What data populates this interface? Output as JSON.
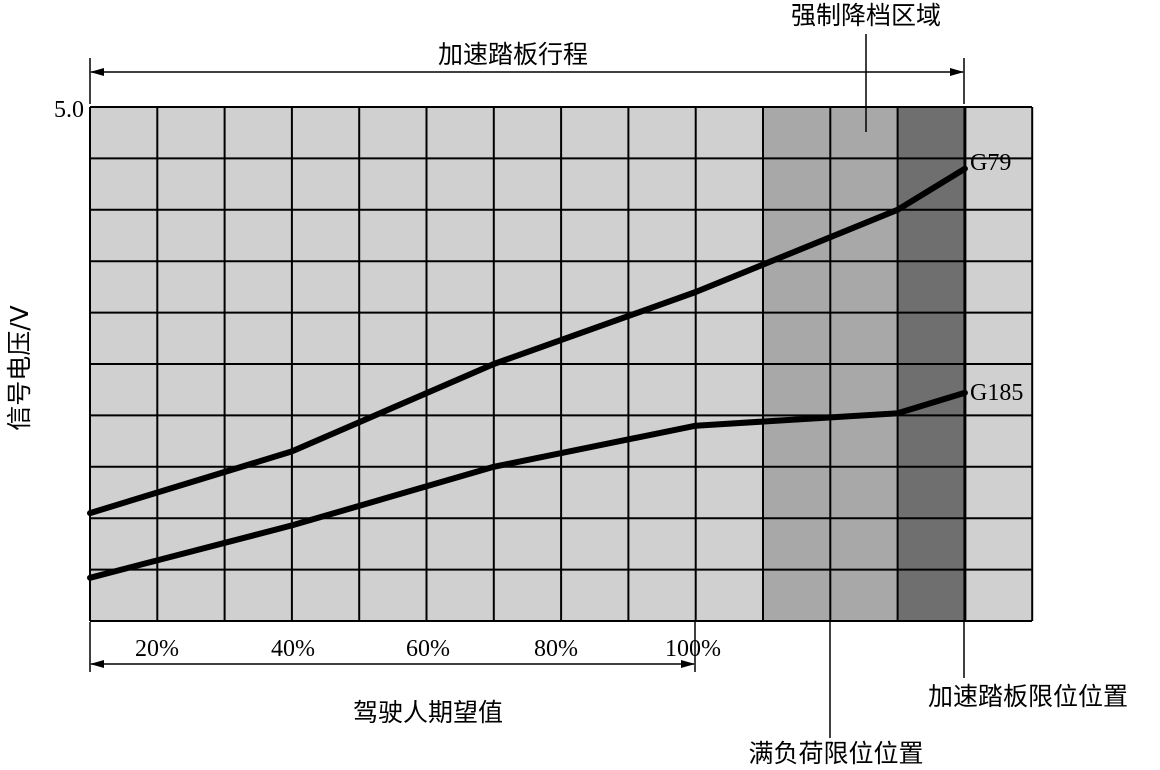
{
  "colors": {
    "background": "#ffffff",
    "zone_normal": "#d0d0d0",
    "zone_full_load": "#a8a8a8",
    "zone_kickdown": "#6f6f6f",
    "grid": "#000000",
    "curve": "#000000"
  },
  "labels": {
    "pedal_travel": "加速踏板行程",
    "kickdown_zone": "强制降档区域",
    "y_max": "5.0",
    "y_axis": "信号电压/V",
    "driver_demand": "驾驶人期望值",
    "pedal_stop": "加速踏板限位位置",
    "full_load_stop": "满负荷限位位置"
  },
  "chart_data": {
    "type": "line",
    "ylabel": "信号电压/V",
    "xlabel": "驾驶人期望值",
    "ylim": [
      0,
      5.0
    ],
    "xlim": [
      0,
      140
    ],
    "grid": true,
    "x_ticks": [
      "20%",
      "40%",
      "60%",
      "80%",
      "100%"
    ],
    "x_tick_values": [
      20,
      40,
      60,
      80,
      100
    ],
    "y_ticks": [
      "5.0"
    ],
    "zones": [
      {
        "name": "full-load",
        "from": 100,
        "to": 120
      },
      {
        "name": "kickdown",
        "from": 120,
        "to": 130,
        "label": "强制降档区域"
      }
    ],
    "markers": [
      {
        "x": 120,
        "label": "满负荷限位位置"
      },
      {
        "x": 130,
        "label": "加速踏板限位位置"
      }
    ],
    "series": [
      {
        "name": "G79",
        "x": [
          0,
          30,
          60,
          90,
          120,
          130
        ],
        "y": [
          1.05,
          1.65,
          2.5,
          3.2,
          4.0,
          4.4
        ]
      },
      {
        "name": "G185",
        "x": [
          0,
          30,
          60,
          90,
          120,
          130
        ],
        "y": [
          0.42,
          0.93,
          1.5,
          1.9,
          2.02,
          2.22
        ]
      }
    ]
  }
}
